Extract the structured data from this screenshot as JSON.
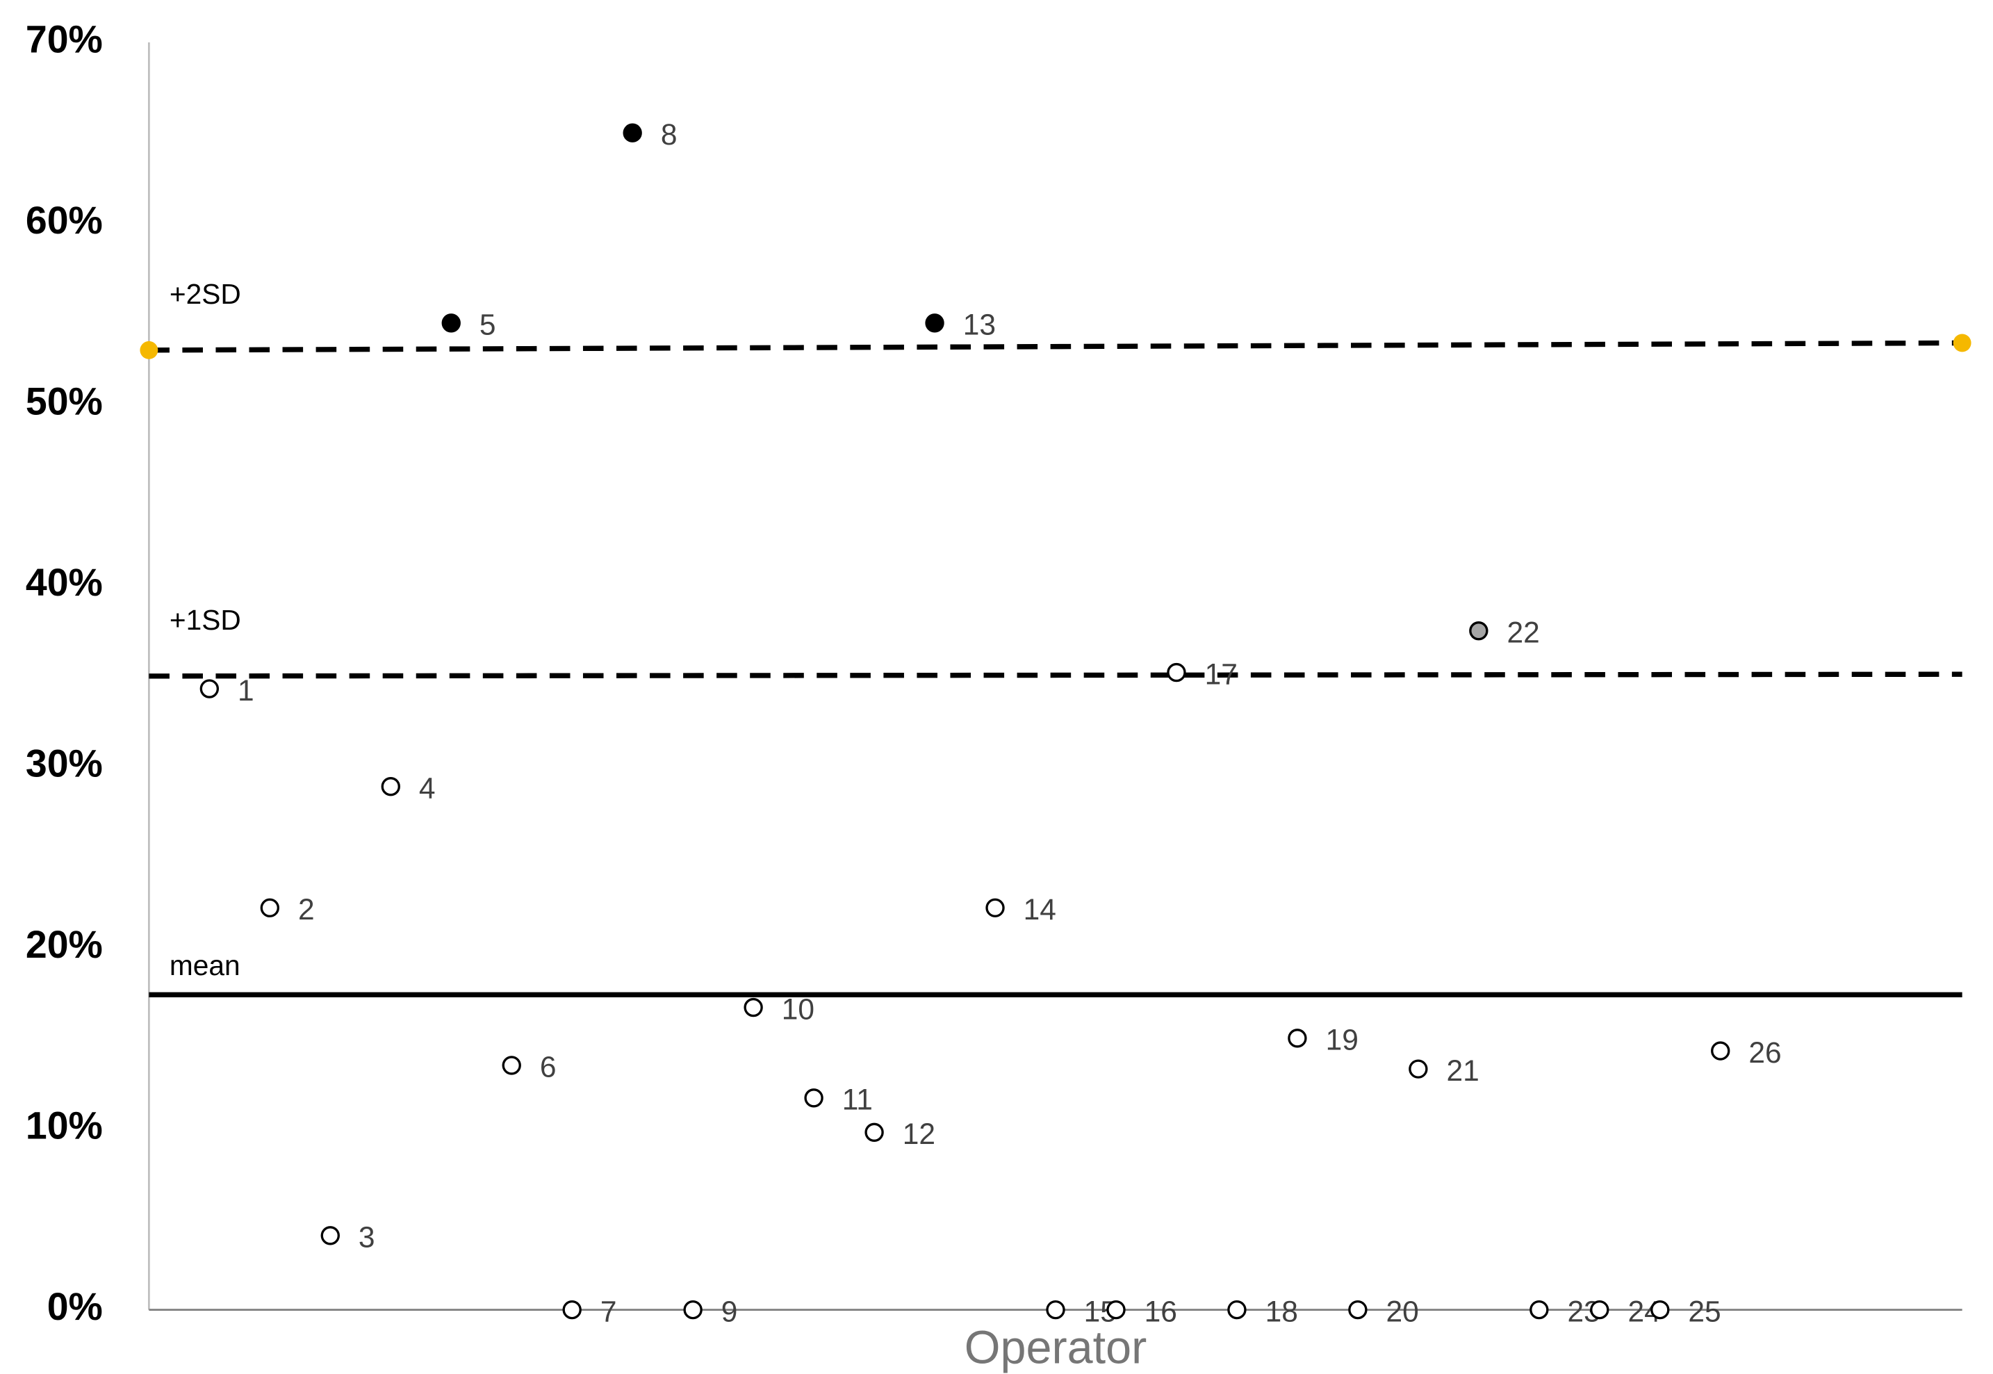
{
  "chart_data": {
    "type": "scatter",
    "x_label": "Operator",
    "x": [
      1,
      2,
      3,
      4,
      5,
      6,
      7,
      8,
      9,
      10,
      11,
      12,
      13,
      14,
      15,
      16,
      17,
      18,
      19,
      20,
      21,
      22,
      23,
      24,
      25,
      26
    ],
    "values": [
      34.3,
      22.2,
      4.1,
      28.9,
      54.5,
      13.5,
      0,
      65.0,
      0,
      16.7,
      11.7,
      9.8,
      54.5,
      22.2,
      0,
      0,
      35.2,
      0,
      15.0,
      0,
      13.3,
      37.5,
      0,
      0,
      0,
      14.3
    ],
    "colors": [
      "#ffffff",
      "#ffffff",
      "#ffffff",
      "#ffffff",
      "#000000",
      "#ffffff",
      "#ffffff",
      "#000000",
      "#ffffff",
      "#ffffff",
      "#ffffff",
      "#ffffff",
      "#000000",
      "#ffffff",
      "#ffffff",
      "#ffffff",
      "#ffffff",
      "#ffffff",
      "#ffffff",
      "#ffffff",
      "#ffffff",
      "#a6a6a6",
      "#ffffff",
      "#ffffff",
      "#ffffff",
      "#ffffff"
    ],
    "reference_lines": [
      {
        "name": "+2SD",
        "values": [
          53.0,
          53.4
        ],
        "style": "dashed",
        "endpoint_color": "#f5b800"
      },
      {
        "name": "+1SD",
        "values": [
          35.0,
          35.1
        ],
        "style": "dashed"
      },
      {
        "name": "mean",
        "values": [
          17.4,
          17.4
        ],
        "style": "solid"
      }
    ],
    "xlim": [
      0,
      30
    ],
    "ylim": [
      0,
      70
    ],
    "yticks": [
      {
        "value": 0,
        "label": "0%"
      },
      {
        "value": 10,
        "label": "10%"
      },
      {
        "value": 20,
        "label": "20%"
      },
      {
        "value": 30,
        "label": "30%"
      },
      {
        "value": 40,
        "label": "40%"
      },
      {
        "value": 50,
        "label": "50%"
      },
      {
        "value": 60,
        "label": "60%"
      },
      {
        "value": 70,
        "label": "70%"
      }
    ]
  }
}
